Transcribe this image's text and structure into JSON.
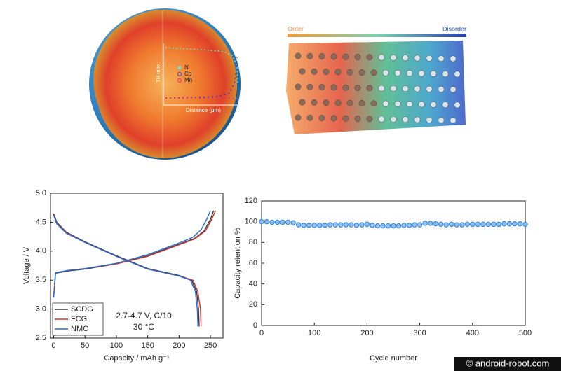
{
  "chart_data": [
    {
      "type": "line",
      "x_label": "Capacity / mAh g⁻¹",
      "y_label": "Voltage / V",
      "annotations": [
        "2.7-4.7 V, C/10",
        "30 °C"
      ],
      "xlim": [
        -5,
        270
      ],
      "xticks": [
        0,
        50,
        100,
        150,
        200,
        250
      ],
      "ylim": [
        2.5,
        5.0
      ],
      "yticks": [
        2.5,
        {
          "value": 3.0,
          "label": "3.0"
        },
        3.5,
        {
          "value": 4.0,
          "label": "4.0"
        },
        4.5,
        {
          "value": 5.0,
          "label": "5.0"
        }
      ],
      "legend": "lower left",
      "series": [
        {
          "name": "SCDG",
          "color": "#3a3a3a",
          "charge": {
            "x": [
              0,
              3,
              25,
              50,
              100,
              150,
              200,
              225,
              240,
              250,
              255
            ],
            "values": [
              3.2,
              3.62,
              3.66,
              3.69,
              3.78,
              3.92,
              4.12,
              4.22,
              4.35,
              4.55,
              4.7
            ]
          },
          "discharge": {
            "x": [
              0,
              5,
              20,
              50,
              100,
              150,
              200,
              220,
              228,
              231,
              232
            ],
            "values": [
              4.65,
              4.5,
              4.33,
              4.16,
              3.92,
              3.7,
              3.58,
              3.5,
              3.3,
              3.0,
              2.7
            ]
          }
        },
        {
          "name": "FCG",
          "color": "#d03030",
          "charge": {
            "x": [
              0,
              3,
              25,
              50,
              100,
              150,
              200,
              225,
              242,
              252,
              258
            ],
            "values": [
              3.2,
              3.63,
              3.67,
              3.7,
              3.78,
              3.91,
              4.11,
              4.21,
              4.35,
              4.55,
              4.7
            ]
          },
          "discharge": {
            "x": [
              0,
              5,
              20,
              50,
              100,
              150,
              200,
              222,
              230,
              234,
              235
            ],
            "values": [
              4.63,
              4.48,
              4.32,
              4.15,
              3.91,
              3.69,
              3.57,
              3.5,
              3.3,
              3.0,
              2.7
            ]
          }
        },
        {
          "name": "NMC",
          "color": "#2a6ecf",
          "charge": {
            "x": [
              0,
              3,
              25,
              50,
              100,
              150,
              200,
              222,
              235,
              244,
              250
            ],
            "values": [
              3.2,
              3.63,
              3.67,
              3.7,
              3.79,
              3.94,
              4.14,
              4.24,
              4.37,
              4.55,
              4.7
            ]
          },
          "discharge": {
            "x": [
              0,
              5,
              20,
              50,
              100,
              150,
              200,
              218,
              226,
              229,
              230
            ],
            "values": [
              4.62,
              4.47,
              4.31,
              4.15,
              3.91,
              3.69,
              3.57,
              3.5,
              3.3,
              3.0,
              2.7
            ]
          }
        }
      ]
    },
    {
      "type": "scatter",
      "x_label": "Cycle number",
      "y_label": "Capacity retention %",
      "xlim": [
        0,
        500
      ],
      "xticks": [
        0,
        100,
        200,
        300,
        400,
        500
      ],
      "ylim": [
        0,
        120
      ],
      "yticks": [
        0,
        20,
        40,
        60,
        80,
        100,
        120
      ],
      "color": "#2f7fdf",
      "x": [
        0,
        10,
        20,
        30,
        40,
        50,
        60,
        70,
        80,
        90,
        100,
        110,
        120,
        130,
        140,
        150,
        160,
        170,
        180,
        190,
        200,
        210,
        220,
        230,
        240,
        250,
        260,
        270,
        280,
        290,
        300,
        310,
        320,
        330,
        340,
        350,
        360,
        370,
        380,
        390,
        400,
        410,
        420,
        430,
        440,
        450,
        460,
        470,
        480,
        490,
        500
      ],
      "values": [
        100,
        100,
        99.5,
        99.5,
        99.5,
        99.5,
        99,
        97,
        96.5,
        96.5,
        96.5,
        96.5,
        96.5,
        97,
        97,
        97,
        97,
        97,
        96.5,
        97,
        97.5,
        96.5,
        96,
        96,
        96,
        96,
        96,
        96.5,
        96.5,
        97,
        97,
        98.5,
        98.5,
        98,
        97.5,
        97,
        97.5,
        97,
        97,
        97.5,
        97.5,
        97.5,
        97.5,
        97.5,
        97.5,
        97.5,
        98,
        98,
        98,
        98,
        97.5
      ]
    }
  ],
  "illustrations": {
    "sphere": {
      "legend": [
        "Ni",
        "Co",
        "Mn"
      ],
      "y_label": "TM ratio",
      "x_label": "Distance (μm)"
    },
    "structure": {
      "left_label": "Order",
      "right_label": "Disorder"
    }
  },
  "watermark": "© android-robot.com"
}
